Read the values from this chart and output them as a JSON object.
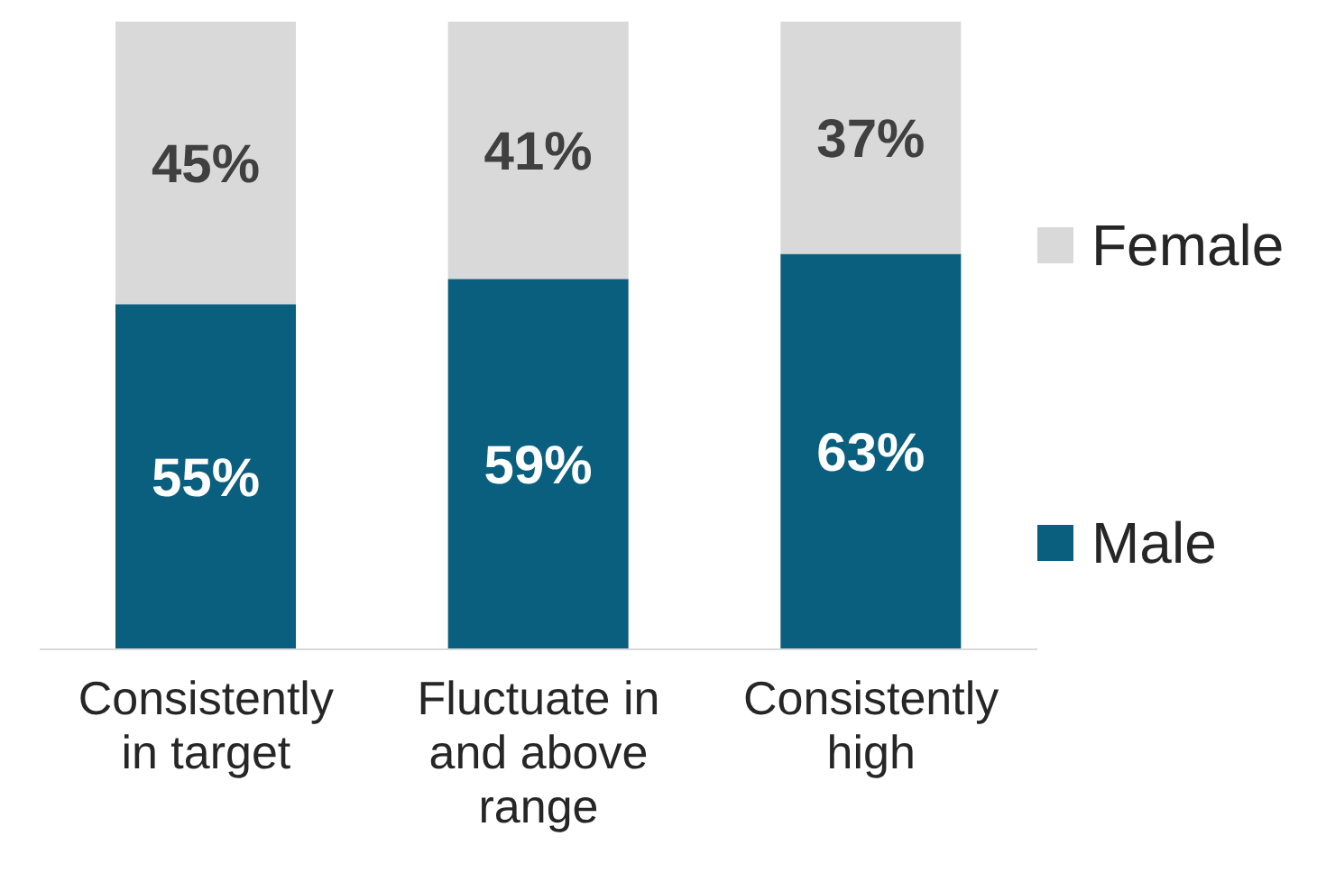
{
  "chart_data": {
    "type": "bar",
    "stacked": true,
    "legend": "right",
    "categories": [
      "Consistently in target",
      "Fluctuate in and above range",
      "Consistently high"
    ],
    "series": [
      {
        "name": "Male",
        "color": "#0a5f7f",
        "values": [
          55,
          59,
          63
        ],
        "value_labels": [
          "55%",
          "59%",
          "63%"
        ]
      },
      {
        "name": "Female",
        "color": "#d9d9d9",
        "values": [
          45,
          41,
          37
        ],
        "value_labels": [
          "45%",
          "41%",
          "37%"
        ]
      }
    ]
  }
}
